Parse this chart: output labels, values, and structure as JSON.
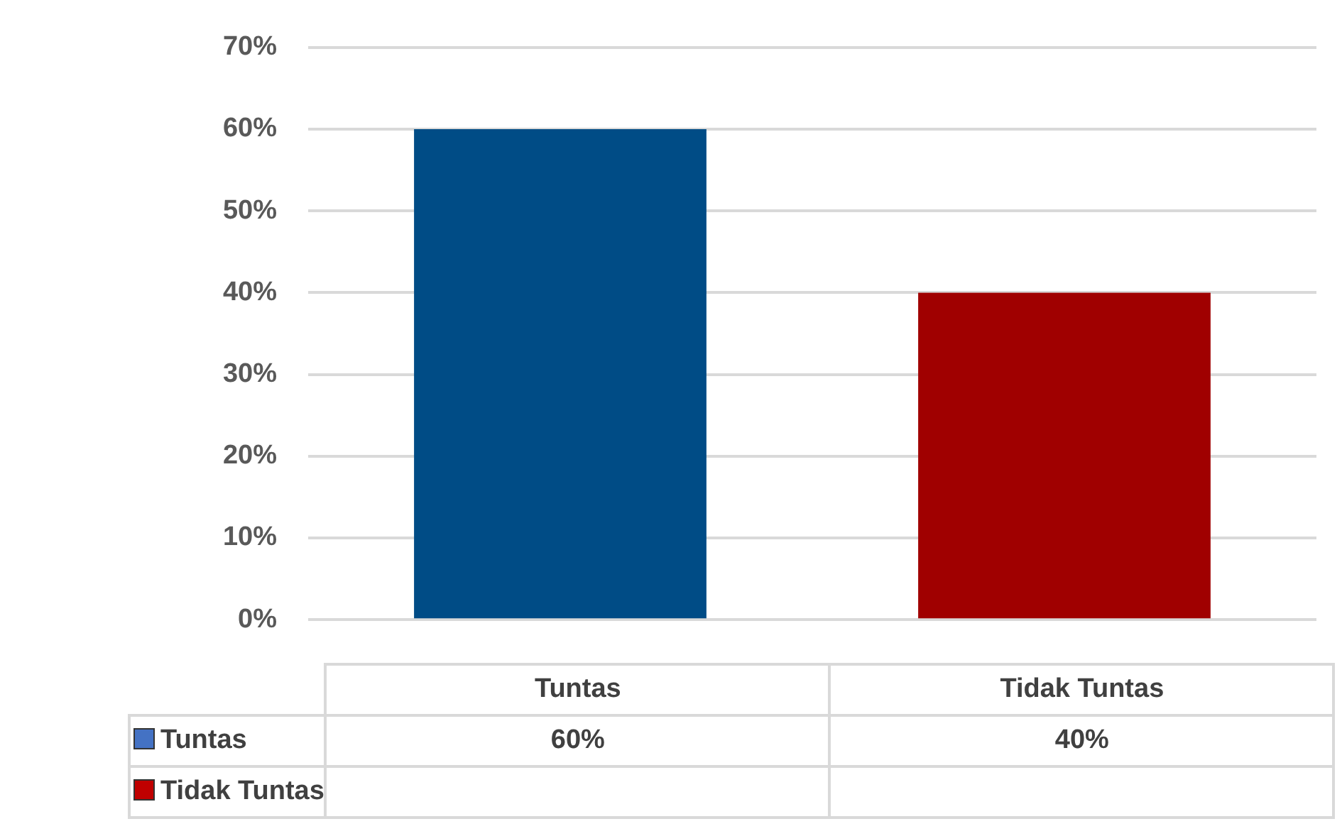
{
  "chart_data": {
    "type": "bar",
    "categories": [
      "Tuntas",
      "Tidak Tuntas"
    ],
    "series": [
      {
        "name": "Tuntas",
        "color": "#4472c4",
        "colors": [
          "#004c86",
          "#a00000"
        ],
        "values": [
          60,
          40
        ],
        "value_labels": [
          "60%",
          "40%"
        ]
      },
      {
        "name": "Tidak Tuntas",
        "color": "#c00000",
        "values": [
          null,
          null
        ]
      }
    ],
    "ylim": [
      0,
      70
    ],
    "yticks": [
      {
        "value": 0,
        "label": "0%"
      },
      {
        "value": 10,
        "label": "10%"
      },
      {
        "value": 20,
        "label": "20%"
      },
      {
        "value": 30,
        "label": "30%"
      },
      {
        "value": 40,
        "label": "40%"
      },
      {
        "value": 50,
        "label": "50%"
      },
      {
        "value": 60,
        "label": "60%"
      },
      {
        "value": 70,
        "label": "70%"
      }
    ],
    "grid": "y",
    "legend": "bottom",
    "data_labels": true
  }
}
